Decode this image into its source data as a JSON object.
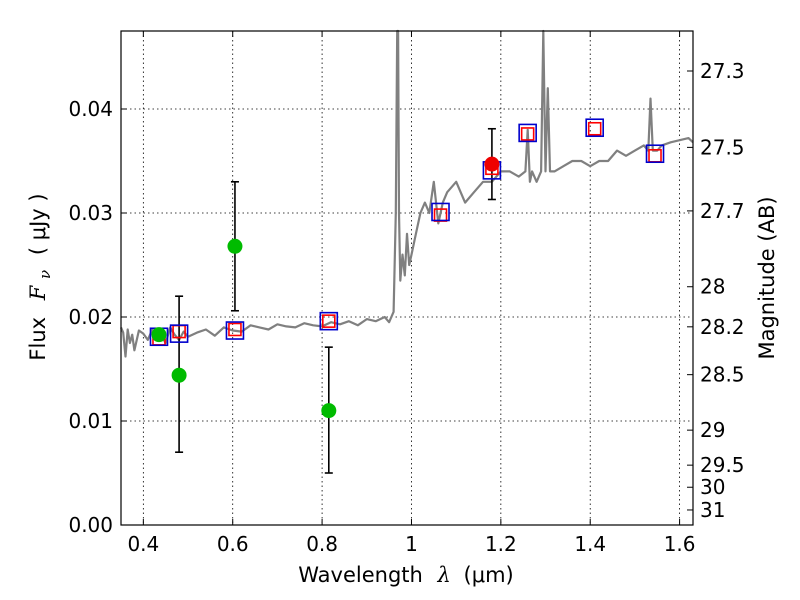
{
  "chart_data": {
    "type": "scatter",
    "xlabel": {
      "prefix": "Wavelength",
      "symbol": "λ",
      "unit": "(μm)"
    },
    "ylabel": {
      "prefix": "Flux",
      "symbol": "F",
      "subscript": "ν",
      "unit": "( μJy )"
    },
    "y2label": "Magnitude (AB)",
    "xlim": [
      0.35,
      1.63
    ],
    "ylim": [
      0.0,
      0.0475
    ],
    "grid": true,
    "x_ticks": [
      {
        "value": 0.4,
        "label": "0.4"
      },
      {
        "value": 0.6,
        "label": "0.6"
      },
      {
        "value": 0.8,
        "label": "0.8"
      },
      {
        "value": 1.0,
        "label": "1"
      },
      {
        "value": 1.2,
        "label": "1.2"
      },
      {
        "value": 1.4,
        "label": "1.4"
      },
      {
        "value": 1.6,
        "label": "1.6"
      }
    ],
    "y_ticks": [
      {
        "value": 0.0,
        "label": "0.00"
      },
      {
        "value": 0.01,
        "label": "0.01"
      },
      {
        "value": 0.02,
        "label": "0.02"
      },
      {
        "value": 0.03,
        "label": "0.03"
      },
      {
        "value": 0.04,
        "label": "0.04"
      }
    ],
    "y2_ticks": [
      {
        "value": 27.3,
        "label": "27.3"
      },
      {
        "value": 27.5,
        "label": "27.5"
      },
      {
        "value": 27.7,
        "label": "27.7"
      },
      {
        "value": 28.0,
        "label": "28"
      },
      {
        "value": 28.2,
        "label": "28.2"
      },
      {
        "value": 28.5,
        "label": "28.5"
      },
      {
        "value": 29.0,
        "label": "29"
      },
      {
        "value": 29.5,
        "label": "29.5"
      },
      {
        "value": 30.0,
        "label": "30"
      },
      {
        "value": 31.0,
        "label": "31"
      }
    ],
    "series": [
      {
        "name": "model-spectrum",
        "kind": "line",
        "color": "#808080",
        "x": [
          0.35,
          0.355,
          0.36,
          0.365,
          0.37,
          0.375,
          0.38,
          0.39,
          0.4,
          0.41,
          0.42,
          0.43,
          0.44,
          0.45,
          0.46,
          0.47,
          0.48,
          0.49,
          0.5,
          0.52,
          0.54,
          0.56,
          0.58,
          0.6,
          0.62,
          0.64,
          0.66,
          0.68,
          0.7,
          0.72,
          0.74,
          0.76,
          0.78,
          0.8,
          0.82,
          0.84,
          0.86,
          0.88,
          0.9,
          0.92,
          0.94,
          0.95,
          0.96,
          0.965,
          0.968,
          0.97,
          0.972,
          0.975,
          0.98,
          0.985,
          0.99,
          0.995,
          1.0,
          1.01,
          1.02,
          1.03,
          1.04,
          1.05,
          1.06,
          1.07,
          1.08,
          1.1,
          1.12,
          1.14,
          1.16,
          1.18,
          1.2,
          1.22,
          1.24,
          1.255,
          1.26,
          1.265,
          1.27,
          1.28,
          1.29,
          1.295,
          1.3,
          1.305,
          1.31,
          1.32,
          1.34,
          1.36,
          1.38,
          1.4,
          1.42,
          1.44,
          1.46,
          1.48,
          1.5,
          1.52,
          1.53,
          1.535,
          1.54,
          1.55,
          1.56,
          1.58,
          1.6,
          1.62,
          1.63
        ],
        "values": [
          0.019,
          0.0185,
          0.0162,
          0.0188,
          0.0175,
          0.0183,
          0.0168,
          0.0187,
          0.0184,
          0.0178,
          0.0188,
          0.018,
          0.0182,
          0.0175,
          0.019,
          0.0183,
          0.0178,
          0.0186,
          0.0181,
          0.0185,
          0.0188,
          0.0182,
          0.019,
          0.0187,
          0.0186,
          0.0192,
          0.019,
          0.0188,
          0.0193,
          0.0191,
          0.019,
          0.0194,
          0.0192,
          0.0191,
          0.0195,
          0.0193,
          0.0196,
          0.0192,
          0.0198,
          0.0196,
          0.02,
          0.0195,
          0.0205,
          0.03,
          0.048,
          0.048,
          0.03,
          0.0235,
          0.026,
          0.024,
          0.028,
          0.025,
          0.026,
          0.028,
          0.03,
          0.031,
          0.03,
          0.033,
          0.029,
          0.031,
          0.032,
          0.033,
          0.031,
          0.032,
          0.033,
          0.033,
          0.034,
          0.034,
          0.0335,
          0.034,
          0.038,
          0.033,
          0.034,
          0.033,
          0.034,
          0.048,
          0.034,
          0.042,
          0.034,
          0.034,
          0.0345,
          0.035,
          0.035,
          0.0345,
          0.035,
          0.035,
          0.036,
          0.0355,
          0.036,
          0.0365,
          0.036,
          0.041,
          0.036,
          0.036,
          0.0365,
          0.0368,
          0.037,
          0.0372,
          0.0368
        ]
      },
      {
        "name": "model-synthetic-photometry",
        "kind": "open-square",
        "color": "#ff0000",
        "x": [
          0.435,
          0.48,
          0.605,
          0.815,
          1.065,
          1.18,
          1.26,
          1.41,
          1.545
        ],
        "values": [
          0.0179,
          0.0186,
          0.0188,
          0.0196,
          0.0298,
          0.0343,
          0.0376,
          0.0381,
          0.0355
        ]
      },
      {
        "name": "model-photometry",
        "kind": "open-square",
        "color": "#0000cc",
        "x": [
          0.435,
          0.48,
          0.605,
          0.815,
          1.065,
          1.18,
          1.26,
          1.41,
          1.545
        ],
        "values": [
          0.0181,
          0.0184,
          0.0187,
          0.0196,
          0.0301,
          0.0341,
          0.0377,
          0.0382,
          0.0357
        ]
      },
      {
        "name": "optical-observations",
        "kind": "filled-circle",
        "color": "#00bb00",
        "x": [
          0.435,
          0.48,
          0.605,
          0.815
        ],
        "values": [
          0.0183,
          0.0144,
          0.0268,
          0.011
        ],
        "err_low": [
          0.0,
          0.0074,
          0.0062,
          0.006
        ],
        "err_high": [
          0.0,
          0.0076,
          0.0062,
          0.0061
        ]
      },
      {
        "name": "nir-observation",
        "kind": "filled-circle",
        "color": "#ee0000",
        "x": [
          1.18
        ],
        "values": [
          0.0347
        ],
        "err_low": [
          0.0034
        ],
        "err_high": [
          0.0034
        ]
      }
    ]
  }
}
